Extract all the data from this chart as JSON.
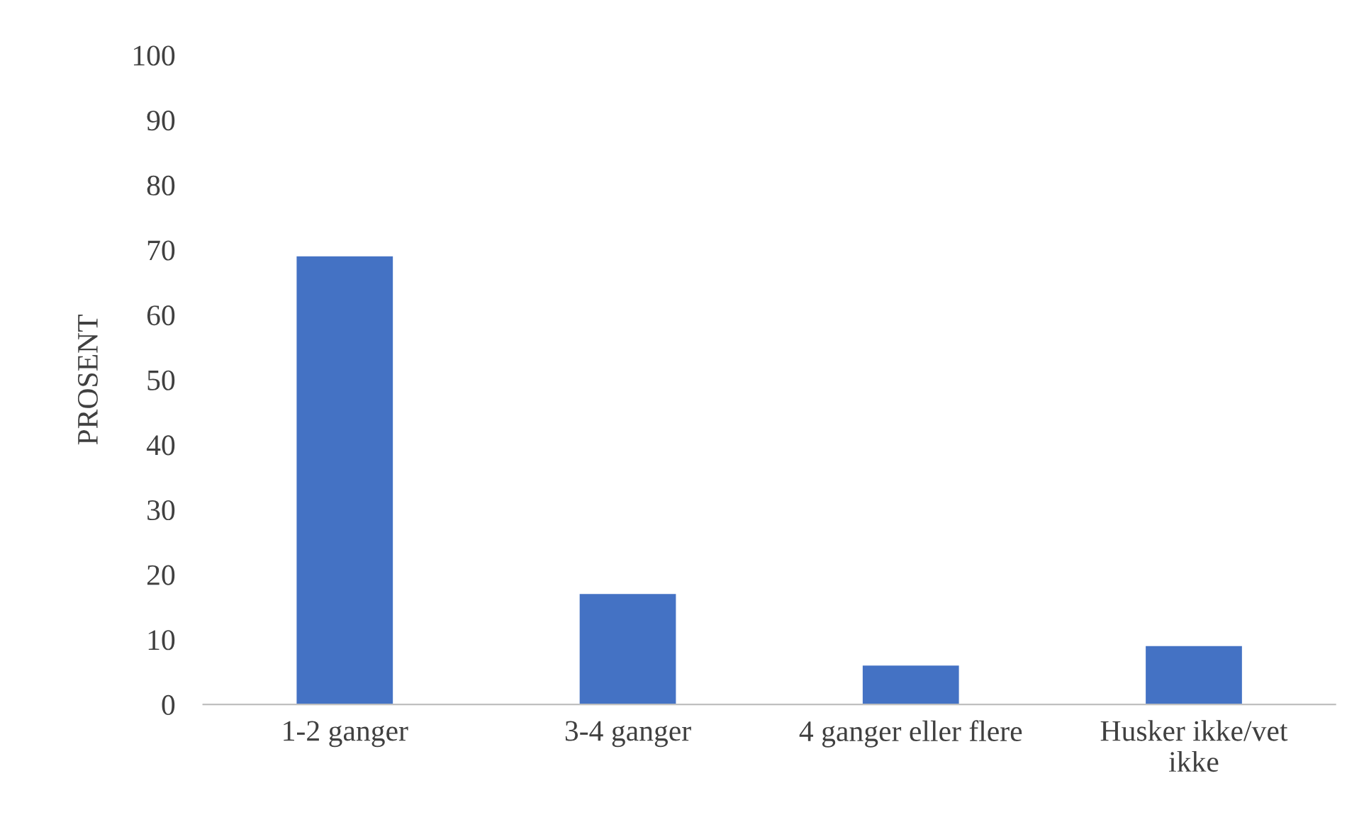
{
  "chart_data": {
    "type": "bar",
    "ylabel": "PROSENT",
    "categories": [
      "1-2 ganger",
      "3-4 ganger",
      "4 ganger eller flere",
      "Husker ikke/vet\nikke"
    ],
    "values": [
      69,
      17,
      6,
      9
    ],
    "color": "#4472c4",
    "ylim": [
      0,
      100
    ],
    "yticks": [
      0,
      10,
      20,
      30,
      40,
      50,
      60,
      70,
      80,
      90,
      100
    ],
    "grid": false,
    "legend": false
  }
}
